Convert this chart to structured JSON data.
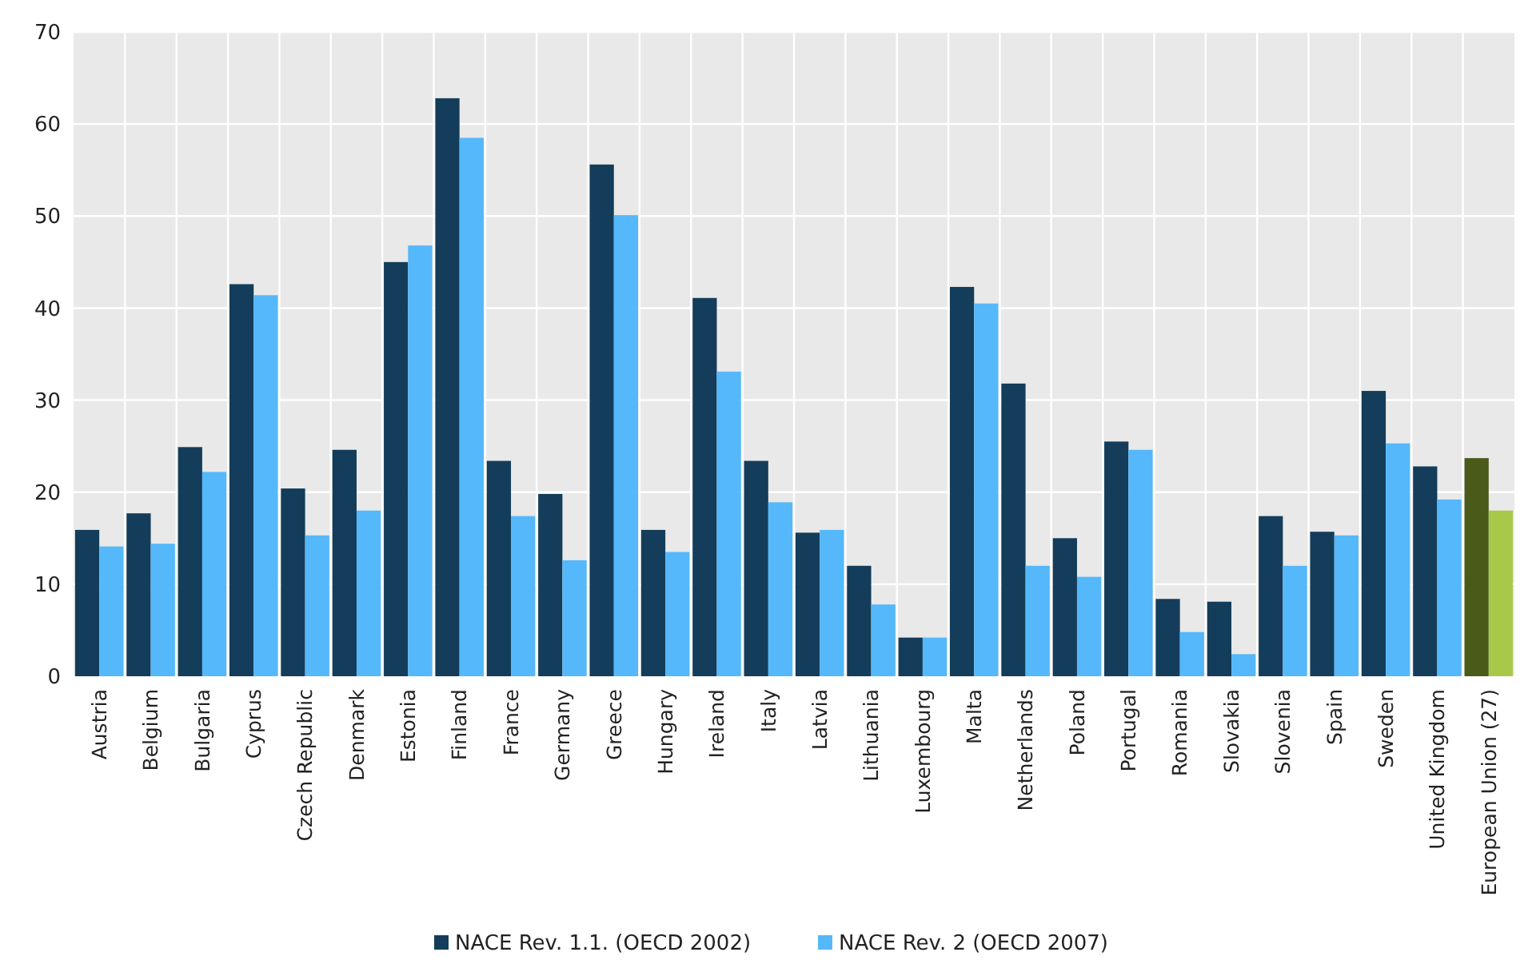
{
  "chart_data": {
    "type": "bar",
    "categories": [
      "Austria",
      "Belgium",
      "Bulgaria",
      "Cyprus",
      "Czech Republic",
      "Denmark",
      "Estonia",
      "Finland",
      "France",
      "Germany",
      "Greece",
      "Hungary",
      "Ireland",
      "Italy",
      "Latvia",
      "Lithuania",
      "Luxembourg",
      "Malta",
      "Netherlands",
      "Poland",
      "Portugal",
      "Romania",
      "Slovakia",
      "Slovenia",
      "Spain",
      "Sweden",
      "United Kingdom",
      "European Union (27)"
    ],
    "series": [
      {
        "name": "NACE Rev. 1.1. (OECD 2002)",
        "color": "#133d5a",
        "colors": [
          "#133d5a",
          "#133d5a",
          "#133d5a",
          "#133d5a",
          "#133d5a",
          "#133d5a",
          "#133d5a",
          "#133d5a",
          "#133d5a",
          "#133d5a",
          "#133d5a",
          "#133d5a",
          "#133d5a",
          "#133d5a",
          "#133d5a",
          "#133d5a",
          "#133d5a",
          "#133d5a",
          "#133d5a",
          "#133d5a",
          "#133d5a",
          "#133d5a",
          "#133d5a",
          "#133d5a",
          "#133d5a",
          "#133d5a",
          "#133d5a",
          "#4a5a18"
        ],
        "values": [
          15.9,
          17.7,
          24.9,
          42.6,
          20.4,
          24.6,
          45.0,
          62.8,
          23.4,
          19.8,
          55.6,
          15.9,
          41.1,
          23.4,
          15.6,
          12.0,
          4.2,
          42.3,
          31.8,
          15.0,
          25.5,
          8.4,
          8.1,
          17.4,
          15.7,
          31.0,
          22.8,
          23.7
        ]
      },
      {
        "name": "NACE Rev. 2 (OECD 2007)",
        "color": "#54b8fb",
        "colors": [
          "#54b8fb",
          "#54b8fb",
          "#54b8fb",
          "#54b8fb",
          "#54b8fb",
          "#54b8fb",
          "#54b8fb",
          "#54b8fb",
          "#54b8fb",
          "#54b8fb",
          "#54b8fb",
          "#54b8fb",
          "#54b8fb",
          "#54b8fb",
          "#54b8fb",
          "#54b8fb",
          "#54b8fb",
          "#54b8fb",
          "#54b8fb",
          "#54b8fb",
          "#54b8fb",
          "#54b8fb",
          "#54b8fb",
          "#54b8fb",
          "#54b8fb",
          "#54b8fb",
          "#54b8fb",
          "#a8c84a"
        ],
        "values": [
          14.1,
          14.4,
          22.2,
          41.4,
          15.3,
          18.0,
          46.8,
          58.5,
          17.4,
          12.6,
          50.1,
          13.5,
          33.1,
          18.9,
          15.9,
          7.8,
          4.2,
          40.5,
          12.0,
          10.8,
          24.6,
          4.8,
          2.4,
          12.0,
          15.3,
          25.3,
          19.2,
          18.0
        ]
      }
    ],
    "ylim": [
      0,
      70
    ],
    "yticks": [
      0,
      10,
      20,
      30,
      40,
      50,
      60,
      70
    ],
    "grid": true,
    "legend": "bottom"
  }
}
